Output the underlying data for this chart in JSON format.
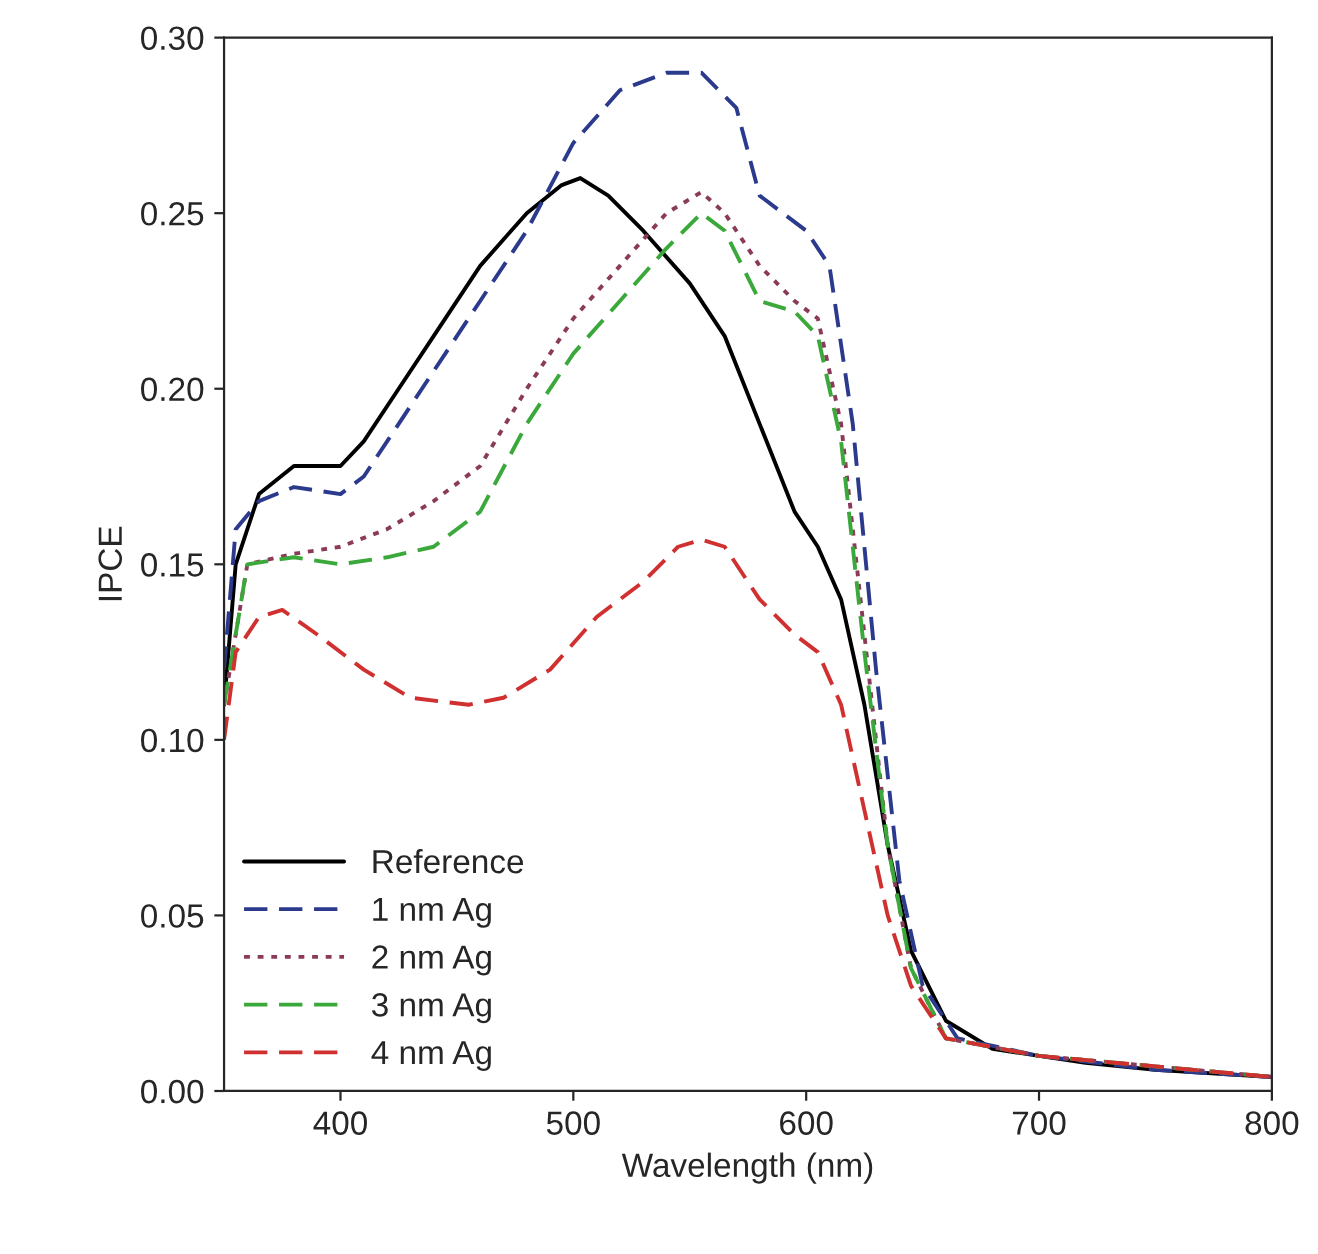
{
  "chart_data": {
    "type": "line",
    "xlabel": "Wavelength (nm)",
    "ylabel": "IPCE",
    "xlim": [
      350,
      800
    ],
    "ylim": [
      0,
      0.3
    ],
    "xticks": [
      400,
      500,
      600,
      700,
      800
    ],
    "yticks": [
      {
        "value": 0,
        "label": "0.00"
      },
      {
        "value": 0.05,
        "label": "0.05"
      },
      {
        "value": 0.1,
        "label": "0.10"
      },
      {
        "value": 0.15,
        "label": "0.15"
      },
      {
        "value": 0.2,
        "label": "0.20"
      },
      {
        "value": 0.25,
        "label": "0.25"
      },
      {
        "value": 0.3,
        "label": "0.30"
      }
    ],
    "grid": false,
    "legend": "bottom left",
    "series": [
      {
        "name": "Reference",
        "color": "#000000",
        "line_style": "solid",
        "x": [
          350,
          355,
          365,
          380,
          400,
          410,
          425,
          440,
          460,
          480,
          495,
          503,
          515,
          530,
          550,
          565,
          580,
          595,
          605,
          615,
          625,
          635,
          645,
          660,
          680,
          700,
          720,
          750,
          800
        ],
        "values": [
          0.11,
          0.15,
          0.17,
          0.178,
          0.178,
          0.185,
          0.2,
          0.215,
          0.235,
          0.25,
          0.258,
          0.26,
          0.255,
          0.245,
          0.23,
          0.215,
          0.19,
          0.165,
          0.155,
          0.14,
          0.11,
          0.07,
          0.04,
          0.02,
          0.012,
          0.01,
          0.008,
          0.006,
          0.004
        ]
      },
      {
        "name": "1 nm Ag",
        "color": "#2b3a8c",
        "line_style": "dashed",
        "x": [
          350,
          355,
          365,
          380,
          400,
          410,
          425,
          440,
          460,
          480,
          500,
          520,
          540,
          555,
          570,
          580,
          590,
          600,
          610,
          620,
          630,
          640,
          650,
          665,
          700,
          750,
          800
        ],
        "values": [
          0.12,
          0.16,
          0.168,
          0.172,
          0.17,
          0.175,
          0.19,
          0.205,
          0.225,
          0.245,
          0.27,
          0.285,
          0.29,
          0.29,
          0.28,
          0.255,
          0.25,
          0.245,
          0.235,
          0.19,
          0.12,
          0.06,
          0.03,
          0.015,
          0.01,
          0.006,
          0.004
        ]
      },
      {
        "name": "2 nm Ag",
        "color": "#8b3a5a",
        "line_style": "dotted",
        "x": [
          350,
          360,
          380,
          400,
          420,
          440,
          460,
          480,
          500,
          520,
          540,
          555,
          565,
          580,
          595,
          605,
          615,
          625,
          635,
          645,
          660,
          700,
          800
        ],
        "values": [
          0.11,
          0.15,
          0.153,
          0.155,
          0.16,
          0.168,
          0.178,
          0.2,
          0.22,
          0.235,
          0.25,
          0.256,
          0.25,
          0.235,
          0.225,
          0.22,
          0.19,
          0.13,
          0.07,
          0.035,
          0.015,
          0.01,
          0.004
        ]
      },
      {
        "name": "3 nm Ag",
        "color": "#3aa83a",
        "line_style": "dashed",
        "x": [
          350,
          360,
          380,
          400,
          420,
          440,
          460,
          480,
          500,
          520,
          540,
          555,
          565,
          580,
          595,
          605,
          615,
          625,
          635,
          645,
          660,
          700,
          800
        ],
        "values": [
          0.11,
          0.15,
          0.152,
          0.15,
          0.152,
          0.155,
          0.165,
          0.19,
          0.21,
          0.225,
          0.24,
          0.25,
          0.245,
          0.225,
          0.222,
          0.215,
          0.185,
          0.125,
          0.07,
          0.035,
          0.015,
          0.01,
          0.004
        ]
      },
      {
        "name": "4 nm Ag",
        "color": "#d03030",
        "line_style": "dashed",
        "x": [
          350,
          355,
          365,
          375,
          390,
          410,
          430,
          455,
          470,
          490,
          510,
          530,
          545,
          555,
          565,
          580,
          595,
          605,
          615,
          625,
          635,
          645,
          660,
          700,
          800
        ],
        "values": [
          0.1,
          0.125,
          0.135,
          0.137,
          0.13,
          0.12,
          0.112,
          0.11,
          0.112,
          0.12,
          0.135,
          0.145,
          0.155,
          0.157,
          0.155,
          0.14,
          0.13,
          0.125,
          0.11,
          0.08,
          0.05,
          0.03,
          0.015,
          0.01,
          0.004
        ]
      }
    ]
  }
}
